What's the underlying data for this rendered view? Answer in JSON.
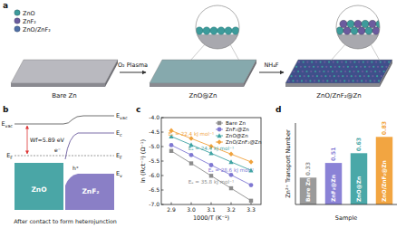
{
  "panel_labels": [
    "a",
    "b",
    "c",
    "d"
  ],
  "panel_a": {
    "legend": [
      {
        "label": "ZnO",
        "color": "#3d9b9b"
      },
      {
        "label": "ZnF₂",
        "color": "#6b5b9e"
      },
      {
        "label": "ZnO/ZnF₂",
        "color": "#4f6fa6"
      }
    ],
    "stages": [
      "Bare Zn",
      "ZnO@Zn",
      "ZnO/ZnF₂@Zn"
    ],
    "steps": [
      "O₂ Plasma",
      "NH₄F"
    ]
  },
  "panel_b": {
    "left_levels": [
      {
        "base": "E",
        "sub": "vac"
      },
      {
        "base": "E",
        "sub": "F"
      }
    ],
    "right_levels": [
      {
        "base": "E",
        "sub": "vac"
      },
      {
        "base": "E",
        "sub": "c"
      },
      {
        "base": "E",
        "sub": "F"
      },
      {
        "base": "E",
        "sub": "v"
      }
    ],
    "work_function": "Wf=5.89 eV",
    "materials": [
      "ZnO",
      "ZnF₂"
    ],
    "carriers": [
      "e⁻",
      "h⁺"
    ],
    "caption": "After contact to form heterojunction"
  },
  "chart_data": [
    {
      "type": "line",
      "x_label": "1000/T (K⁻¹)",
      "y_label": "ln (Rct⁻¹) (Ω⁻¹)",
      "x": [
        2.9,
        3.0,
        3.1,
        3.2,
        3.3
      ],
      "series": [
        {
          "name": "Bare Zn",
          "color": "#8c8c8c",
          "marker": "square",
          "values": [
            -5.15,
            -5.58,
            -6.01,
            -6.44,
            -6.87
          ],
          "annotation": "Eₐ = 35.8 kJ mol⁻¹"
        },
        {
          "name": "ZnF₂@Zn",
          "color": "#7f78d2",
          "marker": "circle",
          "values": [
            -4.95,
            -5.29,
            -5.64,
            -5.98,
            -6.33
          ],
          "annotation": "Eₐ = 28.6 kJ mol⁻¹"
        },
        {
          "name": "ZnO@Zn",
          "color": "#3fa3a3",
          "marker": "triangle",
          "values": [
            -4.65,
            -4.94,
            -5.23,
            -5.53,
            -5.82
          ],
          "annotation": "Eₐ = 24.4 kJ mol⁻¹"
        },
        {
          "name": "ZnO/ZnF₂@Zn",
          "color": "#f0a23c",
          "marker": "diamond",
          "values": [
            -4.45,
            -4.72,
            -4.99,
            -5.26,
            -5.53
          ],
          "annotation": "Eₐ = 22.4 kJ mol⁻¹"
        }
      ],
      "xlim": [
        2.85,
        3.35
      ],
      "xticks": [
        2.9,
        {
          "value": 3,
          "label": "3.0"
        },
        3.1,
        3.2,
        3.3
      ],
      "ylim": [
        -7,
        -4
      ],
      "yticks": [
        {
          "value": -7,
          "label": "-7.0"
        },
        -6.5,
        {
          "value": -6,
          "label": "-6.0"
        },
        -5.5,
        {
          "value": -5,
          "label": "-5.0"
        },
        -4.5,
        {
          "value": -4,
          "label": "-4.0"
        }
      ],
      "legend": "upper right",
      "line_style": "solid"
    },
    {
      "type": "bar",
      "x_label": "Sample",
      "y_label": "Zn²⁺ Transport Number",
      "categories": [
        "Bare Zn",
        "ZnF₂@Zn",
        "ZnO@Zn",
        "ZnO/ZnF₂@Zn"
      ],
      "values": [
        0.33,
        0.51,
        0.63,
        0.83
      ],
      "colors": [
        "#9a9a9a",
        "#8a82d6",
        "#4aa8a8",
        "#f2a541"
      ],
      "ylim": [
        0,
        1
      ],
      "data_labels": true,
      "tick_labels": "x"
    }
  ]
}
